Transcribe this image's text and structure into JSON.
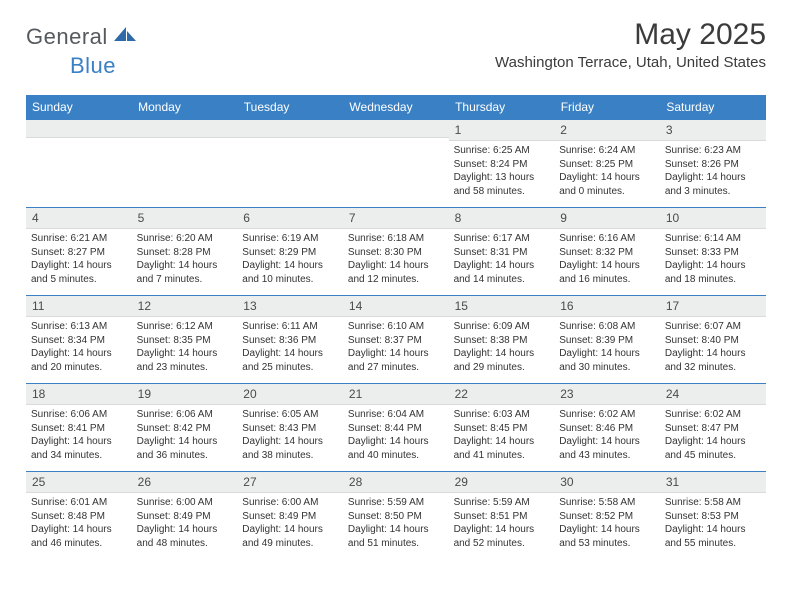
{
  "brand": {
    "general": "General",
    "blue": "Blue"
  },
  "title": "May 2025",
  "location": "Washington Terrace, Utah, United States",
  "colors": {
    "header_bg": "#3a80c4",
    "header_text": "#ffffff",
    "daynum_bg": "#eceeee",
    "daynum_text": "#4a4a4a",
    "body_text": "#333333",
    "rule": "#3a80c4",
    "page_bg": "#ffffff",
    "logo_gray": "#555a5f",
    "logo_blue": "#3a80c4"
  },
  "weekdays": [
    "Sunday",
    "Monday",
    "Tuesday",
    "Wednesday",
    "Thursday",
    "Friday",
    "Saturday"
  ],
  "weeks": [
    [
      {
        "n": "",
        "sr": "",
        "ss": "",
        "dl": ""
      },
      {
        "n": "",
        "sr": "",
        "ss": "",
        "dl": ""
      },
      {
        "n": "",
        "sr": "",
        "ss": "",
        "dl": ""
      },
      {
        "n": "",
        "sr": "",
        "ss": "",
        "dl": ""
      },
      {
        "n": "1",
        "sr": "Sunrise: 6:25 AM",
        "ss": "Sunset: 8:24 PM",
        "dl": "Daylight: 13 hours and 58 minutes."
      },
      {
        "n": "2",
        "sr": "Sunrise: 6:24 AM",
        "ss": "Sunset: 8:25 PM",
        "dl": "Daylight: 14 hours and 0 minutes."
      },
      {
        "n": "3",
        "sr": "Sunrise: 6:23 AM",
        "ss": "Sunset: 8:26 PM",
        "dl": "Daylight: 14 hours and 3 minutes."
      }
    ],
    [
      {
        "n": "4",
        "sr": "Sunrise: 6:21 AM",
        "ss": "Sunset: 8:27 PM",
        "dl": "Daylight: 14 hours and 5 minutes."
      },
      {
        "n": "5",
        "sr": "Sunrise: 6:20 AM",
        "ss": "Sunset: 8:28 PM",
        "dl": "Daylight: 14 hours and 7 minutes."
      },
      {
        "n": "6",
        "sr": "Sunrise: 6:19 AM",
        "ss": "Sunset: 8:29 PM",
        "dl": "Daylight: 14 hours and 10 minutes."
      },
      {
        "n": "7",
        "sr": "Sunrise: 6:18 AM",
        "ss": "Sunset: 8:30 PM",
        "dl": "Daylight: 14 hours and 12 minutes."
      },
      {
        "n": "8",
        "sr": "Sunrise: 6:17 AM",
        "ss": "Sunset: 8:31 PM",
        "dl": "Daylight: 14 hours and 14 minutes."
      },
      {
        "n": "9",
        "sr": "Sunrise: 6:16 AM",
        "ss": "Sunset: 8:32 PM",
        "dl": "Daylight: 14 hours and 16 minutes."
      },
      {
        "n": "10",
        "sr": "Sunrise: 6:14 AM",
        "ss": "Sunset: 8:33 PM",
        "dl": "Daylight: 14 hours and 18 minutes."
      }
    ],
    [
      {
        "n": "11",
        "sr": "Sunrise: 6:13 AM",
        "ss": "Sunset: 8:34 PM",
        "dl": "Daylight: 14 hours and 20 minutes."
      },
      {
        "n": "12",
        "sr": "Sunrise: 6:12 AM",
        "ss": "Sunset: 8:35 PM",
        "dl": "Daylight: 14 hours and 23 minutes."
      },
      {
        "n": "13",
        "sr": "Sunrise: 6:11 AM",
        "ss": "Sunset: 8:36 PM",
        "dl": "Daylight: 14 hours and 25 minutes."
      },
      {
        "n": "14",
        "sr": "Sunrise: 6:10 AM",
        "ss": "Sunset: 8:37 PM",
        "dl": "Daylight: 14 hours and 27 minutes."
      },
      {
        "n": "15",
        "sr": "Sunrise: 6:09 AM",
        "ss": "Sunset: 8:38 PM",
        "dl": "Daylight: 14 hours and 29 minutes."
      },
      {
        "n": "16",
        "sr": "Sunrise: 6:08 AM",
        "ss": "Sunset: 8:39 PM",
        "dl": "Daylight: 14 hours and 30 minutes."
      },
      {
        "n": "17",
        "sr": "Sunrise: 6:07 AM",
        "ss": "Sunset: 8:40 PM",
        "dl": "Daylight: 14 hours and 32 minutes."
      }
    ],
    [
      {
        "n": "18",
        "sr": "Sunrise: 6:06 AM",
        "ss": "Sunset: 8:41 PM",
        "dl": "Daylight: 14 hours and 34 minutes."
      },
      {
        "n": "19",
        "sr": "Sunrise: 6:06 AM",
        "ss": "Sunset: 8:42 PM",
        "dl": "Daylight: 14 hours and 36 minutes."
      },
      {
        "n": "20",
        "sr": "Sunrise: 6:05 AM",
        "ss": "Sunset: 8:43 PM",
        "dl": "Daylight: 14 hours and 38 minutes."
      },
      {
        "n": "21",
        "sr": "Sunrise: 6:04 AM",
        "ss": "Sunset: 8:44 PM",
        "dl": "Daylight: 14 hours and 40 minutes."
      },
      {
        "n": "22",
        "sr": "Sunrise: 6:03 AM",
        "ss": "Sunset: 8:45 PM",
        "dl": "Daylight: 14 hours and 41 minutes."
      },
      {
        "n": "23",
        "sr": "Sunrise: 6:02 AM",
        "ss": "Sunset: 8:46 PM",
        "dl": "Daylight: 14 hours and 43 minutes."
      },
      {
        "n": "24",
        "sr": "Sunrise: 6:02 AM",
        "ss": "Sunset: 8:47 PM",
        "dl": "Daylight: 14 hours and 45 minutes."
      }
    ],
    [
      {
        "n": "25",
        "sr": "Sunrise: 6:01 AM",
        "ss": "Sunset: 8:48 PM",
        "dl": "Daylight: 14 hours and 46 minutes."
      },
      {
        "n": "26",
        "sr": "Sunrise: 6:00 AM",
        "ss": "Sunset: 8:49 PM",
        "dl": "Daylight: 14 hours and 48 minutes."
      },
      {
        "n": "27",
        "sr": "Sunrise: 6:00 AM",
        "ss": "Sunset: 8:49 PM",
        "dl": "Daylight: 14 hours and 49 minutes."
      },
      {
        "n": "28",
        "sr": "Sunrise: 5:59 AM",
        "ss": "Sunset: 8:50 PM",
        "dl": "Daylight: 14 hours and 51 minutes."
      },
      {
        "n": "29",
        "sr": "Sunrise: 5:59 AM",
        "ss": "Sunset: 8:51 PM",
        "dl": "Daylight: 14 hours and 52 minutes."
      },
      {
        "n": "30",
        "sr": "Sunrise: 5:58 AM",
        "ss": "Sunset: 8:52 PM",
        "dl": "Daylight: 14 hours and 53 minutes."
      },
      {
        "n": "31",
        "sr": "Sunrise: 5:58 AM",
        "ss": "Sunset: 8:53 PM",
        "dl": "Daylight: 14 hours and 55 minutes."
      }
    ]
  ]
}
